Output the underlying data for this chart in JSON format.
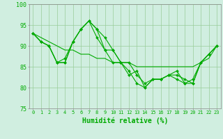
{
  "xlabel": "Humidité relative (%)",
  "x": [
    0,
    1,
    2,
    3,
    4,
    5,
    6,
    7,
    8,
    9,
    10,
    11,
    12,
    13,
    14,
    15,
    16,
    17,
    18,
    19,
    20,
    21,
    22,
    23
  ],
  "series1": [
    93,
    91,
    90,
    86,
    86,
    91,
    94,
    96,
    94,
    92,
    89,
    86,
    83,
    84,
    80,
    82,
    82,
    83,
    84,
    81,
    81,
    86,
    88,
    90
  ],
  "series2": [
    93,
    91,
    90,
    86,
    86,
    91,
    94,
    96,
    92,
    89,
    86,
    86,
    86,
    83,
    81,
    82,
    82,
    83,
    82,
    81,
    82,
    86,
    88,
    90
  ],
  "series3": [
    93,
    91,
    90,
    86,
    87,
    91,
    94,
    96,
    94,
    89,
    89,
    86,
    84,
    81,
    80,
    82,
    82,
    83,
    83,
    82,
    81,
    86,
    88,
    90
  ],
  "trend": [
    93,
    92,
    91,
    90,
    89,
    89,
    88,
    88,
    87,
    87,
    86,
    86,
    86,
    85,
    85,
    85,
    85,
    85,
    85,
    85,
    85,
    86,
    87,
    90
  ],
  "line_color": "#00AA00",
  "bg_color": "#D0EEE0",
  "grid_color": "#99CC99",
  "ylim": [
    75,
    100
  ],
  "yticks": [
    75,
    80,
    85,
    90,
    95,
    100
  ],
  "xlim_min": -0.5,
  "xlim_max": 23.5
}
